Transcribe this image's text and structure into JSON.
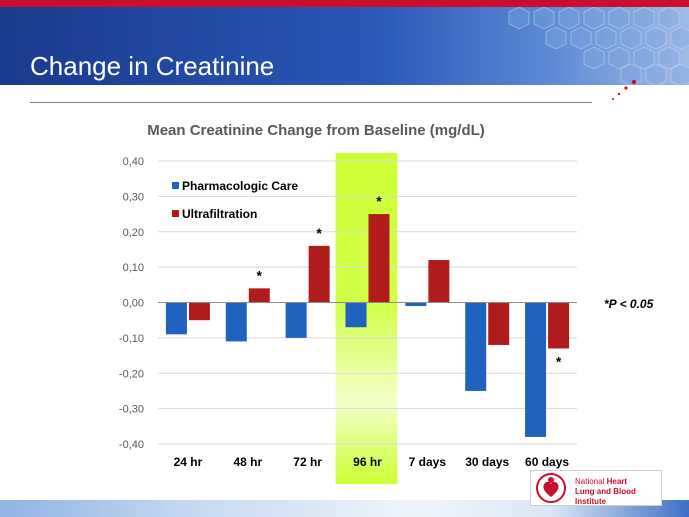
{
  "slide": {
    "title": "Change in Creatinine",
    "significance_note": "*P < 0.05",
    "logo_text": {
      "line1_a": "National",
      "line1_b": "Heart",
      "line2": "Lung and Blood Institute"
    }
  },
  "chart_data": {
    "type": "bar",
    "title": "Mean Creatinine Change from Baseline (mg/dL)",
    "categories": [
      "24 hr",
      "48 hr",
      "72 hr",
      "96 hr",
      "7 days",
      "30 days",
      "60 days"
    ],
    "series": [
      {
        "name": "Pharmacologic Care",
        "values": [
          -0.09,
          -0.11,
          -0.1,
          -0.07,
          -0.01,
          -0.25,
          -0.38
        ],
        "color": "#1f62c0"
      },
      {
        "name": "Ultrafiltration",
        "values": [
          -0.05,
          0.04,
          0.16,
          0.25,
          0.12,
          -0.12,
          -0.13
        ],
        "color": "#b01c1c"
      }
    ],
    "significance_markers": [
      {
        "category": "48 hr",
        "series": "Ultrafiltration",
        "label": "*"
      },
      {
        "category": "72 hr",
        "series": "Ultrafiltration",
        "label": "*"
      },
      {
        "category": "96 hr",
        "series": "Ultrafiltration",
        "label": "*"
      },
      {
        "category": "60 days",
        "series": "Ultrafiltration",
        "label": "*"
      }
    ],
    "highlighted_category": "96 hr",
    "highlight_color": "#ccff33",
    "ylim": [
      -0.4,
      0.4
    ],
    "yticks": [
      "0,40",
      "0,30",
      "0,20",
      "0,10",
      "0,00",
      "-0,10",
      "-0,20",
      "-0,30",
      "-0,40"
    ],
    "ytick_values": [
      0.4,
      0.3,
      0.2,
      0.1,
      0.0,
      -0.1,
      -0.2,
      -0.3,
      -0.4
    ],
    "grid": true,
    "legend_position": "top-left"
  }
}
